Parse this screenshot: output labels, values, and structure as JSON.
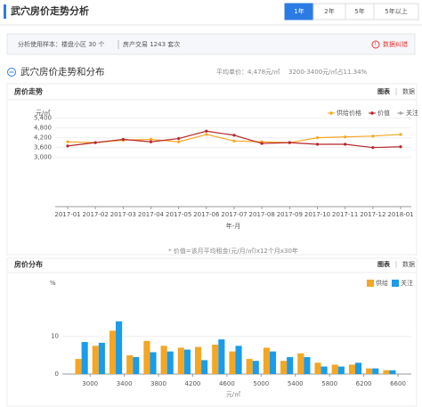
{
  "header": {
    "title": "武穴房价走势分析",
    "tabs": [
      "1年",
      "2年",
      "5年",
      "5年以上"
    ],
    "active_tab": 0
  },
  "info": {
    "sample": "分析使用样本：楼盘小区 30 个",
    "trades": "房产交易 1243 套次",
    "error": "数据纠错"
  },
  "section": {
    "title": "武穴房价走势和分布",
    "avg": "平均单价：4,478元/㎡",
    "share": "3200-3400元/㎡占11.34%"
  },
  "chart_data": [
    {
      "type": "line",
      "title": "房价走势",
      "views": [
        "图表",
        "数据"
      ],
      "y_label": "元/㎡",
      "x_label": "年-月",
      "note": "* 价值=该月平均租金(元/月/㎡)x12个月x30年",
      "categories": [
        "2017-01",
        "2017-02",
        "2017-03",
        "2017-04",
        "2017-05",
        "2017-06",
        "2017-07",
        "2017-08",
        "2017-09",
        "2017-10",
        "2017-11",
        "2017-12",
        "2018-01"
      ],
      "series": [
        {
          "name": "供给价格",
          "color": "#f5a623",
          "values": [
            3950,
            3900,
            4050,
            4100,
            3950,
            4400,
            4000,
            3950,
            3900,
            4200,
            4250,
            4300,
            4400
          ]
        },
        {
          "name": "价值",
          "color": "#b5262b",
          "values": [
            3700,
            3900,
            4100,
            3950,
            4150,
            4600,
            4350,
            3850,
            3900,
            3800,
            3800,
            3600,
            3650
          ]
        },
        {
          "name": "关注",
          "color": "#aaaaaa",
          "values": [
            null,
            null,
            null,
            null,
            null,
            null,
            null,
            null,
            null,
            null,
            null,
            null,
            null
          ]
        }
      ],
      "ylim": [
        0,
        5700
      ],
      "yticks": [
        {
          "value": 3000,
          "label": "3,000"
        },
        {
          "value": 3600,
          "label": "3,600"
        },
        {
          "value": 4200,
          "label": "4,200"
        },
        {
          "value": 4800,
          "label": "4,800"
        },
        {
          "value": 5400,
          "label": "5,400"
        }
      ],
      "grid": true
    },
    {
      "type": "histogram",
      "title": "房价分布",
      "views": [
        "图表",
        "数据"
      ],
      "y_label": "%",
      "x_label": "元/㎡",
      "bins": [
        2800,
        3000,
        3200,
        3400,
        3600,
        3800,
        4000,
        4200,
        4400,
        4600,
        4800,
        5000,
        5200,
        5400,
        5600,
        5800,
        6000,
        6200,
        6400,
        6600
      ],
      "series": [
        {
          "name": "供给",
          "color": "#f5a623",
          "values": [
            4,
            7.5,
            11.5,
            5,
            8.8,
            7.5,
            7,
            7.2,
            7.8,
            6,
            4,
            7,
            3.5,
            5.5,
            3,
            2.5,
            2.5,
            1.5,
            1
          ]
        },
        {
          "name": "关注",
          "color": "#1a9ce8",
          "values": [
            8.5,
            8.3,
            14,
            4.5,
            5.8,
            6,
            6.5,
            3.7,
            9.2,
            7.5,
            3.5,
            6,
            4.5,
            4.5,
            2,
            2,
            3,
            1.5,
            1
          ]
        }
      ],
      "xlim": [
        2800,
        6600
      ],
      "xticks": [
        3000,
        3400,
        3800,
        4200,
        4600,
        5000,
        5400,
        5800,
        6200,
        6600
      ],
      "ylim": [
        0,
        22
      ],
      "yticks": [
        0,
        10
      ],
      "grid": true
    }
  ]
}
